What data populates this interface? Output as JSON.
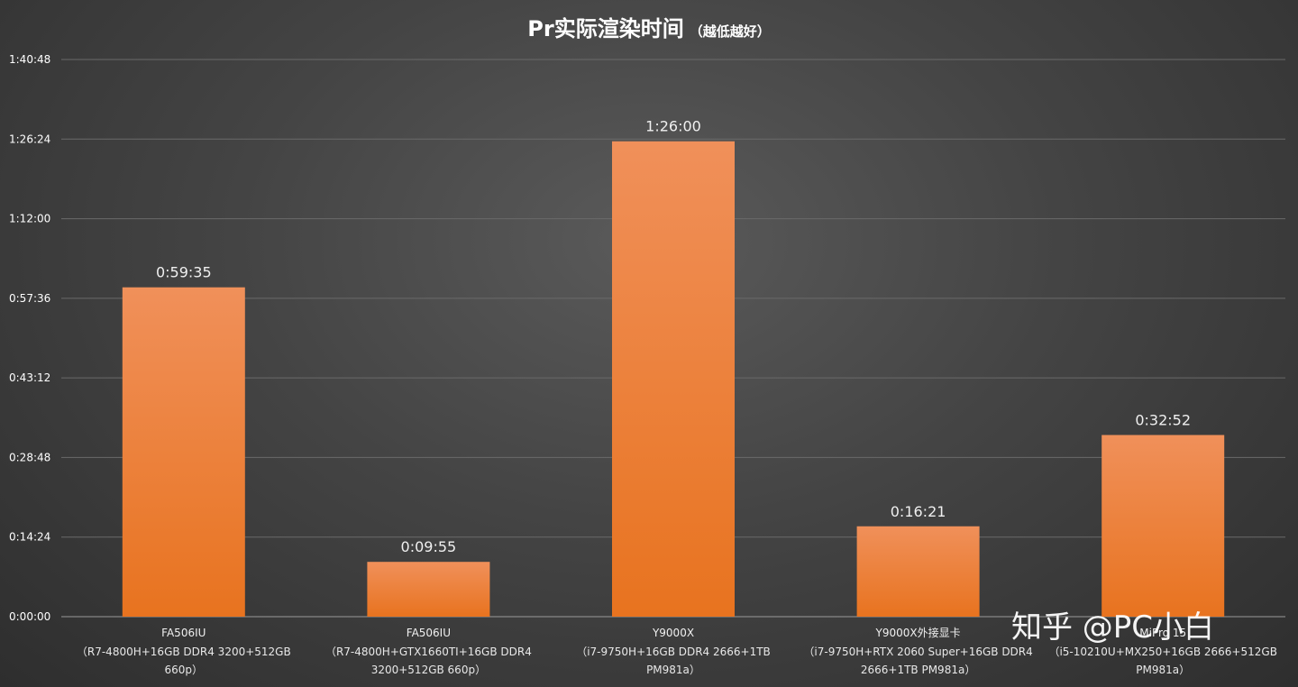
{
  "chart_data": {
    "type": "bar",
    "title": "Pr实际渲染时间",
    "subtitle": "（越低越好）",
    "xlabel": "",
    "ylabel": "",
    "ylim": [
      0,
      6048
    ],
    "yticks": [
      0,
      864,
      1728,
      2592,
      3456,
      4320,
      5184,
      6048
    ],
    "ytick_labels": [
      "0:00:00",
      "0:14:24",
      "0:28:48",
      "0:43:12",
      "0:57:36",
      "1:12:00",
      "1:26:24",
      "1:40:48"
    ],
    "grid": true,
    "legend": "none",
    "categories": [
      {
        "name": "FA506IU",
        "spec": [
          "（R7-4800H+16GB DDR4 3200+512GB",
          "660p）"
        ]
      },
      {
        "name": "FA506IU",
        "spec": [
          "（R7-4800H+GTX1660TI+16GB DDR4",
          "3200+512GB 660p）"
        ]
      },
      {
        "name": "Y9000X",
        "spec": [
          "（i7-9750H+16GB DDR4 2666+1TB",
          "PM981a）"
        ]
      },
      {
        "name": "Y9000X外接显卡",
        "spec": [
          "（i7-9750H+RTX 2060 Super+16GB DDR4",
          "2666+1TB PM981a）"
        ]
      },
      {
        "name": "MiPro 15",
        "spec": [
          "（i5-10210U+MX250+16GB 2666+512GB",
          "PM981a）"
        ]
      }
    ],
    "values": [
      3575,
      595,
      5160,
      981,
      1972
    ],
    "value_labels": [
      "0:59:35",
      "0:09:55",
      "1:26:00",
      "0:16:21",
      "0:32:52"
    ],
    "colors": {
      "bar_top": "#f0905a",
      "bar_bottom": "#e8731f",
      "grid": "#6a6a6a",
      "axis": "#9a9a9a"
    }
  },
  "watermark": "知乎 @PC小白"
}
